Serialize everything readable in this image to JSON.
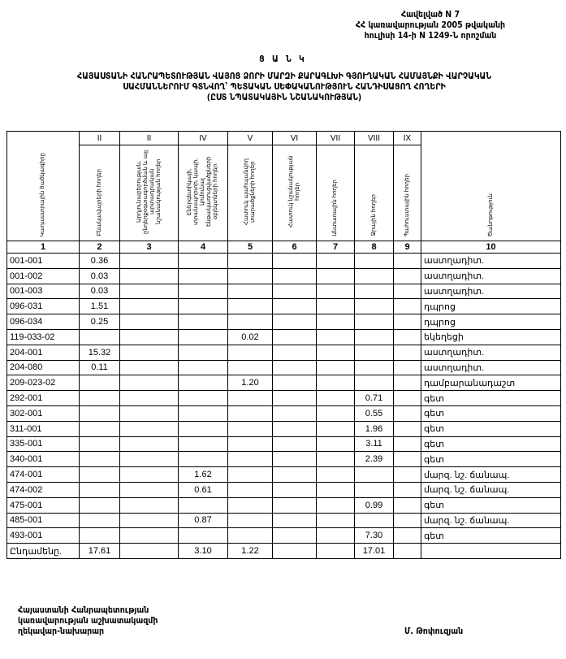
{
  "header": {
    "line1": "Հավելված N 7",
    "line2": "ՀՀ կառավարության 2005 թվականի",
    "line3": "հուլիսի 14-ի N 1249-Ն որոշման"
  },
  "list_label": "Ց Ա Ն Կ",
  "title": "ՀԱՅԱՍՏԱՆԻ ՀԱՆՐԱՊԵՏՈՒԹՅԱՆ ՎԱՅՈՑ ՁՈՐԻ ՄԱՐԶԻ ՔԱՐԱԳԼԽԻ ԳՅՈՒՂԱԿԱՆ ՀԱՄԱՅՆՔԻ ՎԱՐՉԱԿԱՆ ՍԱՀՄԱՆՆԵՐՈՒՄ ԳՏՆՎՈՂ՝ ՊԵՏԱԿԱՆ ՍԵՓԱԿԱՆՈՒԹՅՈՒՆ ՀԱՆԴԻՍԱՑՈՂ ՀՈՂԵՐԻ",
  "subtitle": "(ԸՍՏ ՆՊԱՏԱԿԱՅԻՆ ՆՇԱՆԱԿՈՒԹՅԱՆ)",
  "table": {
    "roman": [
      "II",
      "II",
      "IV",
      "V",
      "VI",
      "VII",
      "VIII",
      "IX"
    ],
    "headers": [
      "Կադաստրային ծածկագիրը",
      "Բնակավայրերի հողեր",
      "Արդյունաբերության, ընդերքօգտագործման և այլ արտադրական նշանակության հողեր",
      "Էներգետիկայի, տրանսպորտի, կապի, կոմունալ ենթակառուցվածքների օբյեկտների հողեր",
      "Հատուկ պահպանվող տարածքների հողեր",
      "Հատուկ նշանակության հողեր",
      "Անտառային հողեր",
      "Ջրային հողեր",
      "Պահուստային հողեր",
      "Ծանոթություն"
    ],
    "numbers": [
      "1",
      "2",
      "3",
      "4",
      "5",
      "6",
      "7",
      "8",
      "9",
      "10"
    ],
    "rows": [
      [
        "001-001",
        "0.36",
        "",
        "",
        "",
        "",
        "",
        "",
        "",
        "աստղադիտ."
      ],
      [
        "001-002",
        "0.03",
        "",
        "",
        "",
        "",
        "",
        "",
        "",
        "աստղադիտ."
      ],
      [
        "001-003",
        "0.03",
        "",
        "",
        "",
        "",
        "",
        "",
        "",
        "աստղադիտ."
      ],
      [
        "096-031",
        "1.51",
        "",
        "",
        "",
        "",
        "",
        "",
        "",
        "դպրոց"
      ],
      [
        "096-034",
        "0.25",
        "",
        "",
        "",
        "",
        "",
        "",
        "",
        "դպրոց"
      ],
      [
        "119-033-02",
        "",
        "",
        "",
        "0.02",
        "",
        "",
        "",
        "",
        "եկեղեցի"
      ],
      [
        "204-001",
        "15.32",
        "",
        "",
        "",
        "",
        "",
        "",
        "",
        "աստղադիտ."
      ],
      [
        "204-080",
        "0.11",
        "",
        "",
        "",
        "",
        "",
        "",
        "",
        "աստղադիտ."
      ],
      [
        "209-023-02",
        "",
        "",
        "",
        "1.20",
        "",
        "",
        "",
        "",
        "դամբարանադաշտ"
      ],
      [
        "292-001",
        "",
        "",
        "",
        "",
        "",
        "",
        "0.71",
        "",
        "գետ"
      ],
      [
        "302-001",
        "",
        "",
        "",
        "",
        "",
        "",
        "0.55",
        "",
        "գետ"
      ],
      [
        "311-001",
        "",
        "",
        "",
        "",
        "",
        "",
        "1.96",
        "",
        "գետ"
      ],
      [
        "335-001",
        "",
        "",
        "",
        "",
        "",
        "",
        "3.11",
        "",
        "գետ"
      ],
      [
        "340-001",
        "",
        "",
        "",
        "",
        "",
        "",
        "2.39",
        "",
        "գետ"
      ],
      [
        "474-001",
        "",
        "",
        "1.62",
        "",
        "",
        "",
        "",
        "",
        "մարզ. նշ. ճանապ."
      ],
      [
        "474-002",
        "",
        "",
        "0.61",
        "",
        "",
        "",
        "",
        "",
        "մարզ. նշ. ճանապ."
      ],
      [
        "475-001",
        "",
        "",
        "",
        "",
        "",
        "",
        "0.99",
        "",
        "գետ"
      ],
      [
        "485-001",
        "",
        "",
        "0.87",
        "",
        "",
        "",
        "",
        "",
        "մարզ. նշ. ճանապ."
      ],
      [
        "493-001",
        "",
        "",
        "",
        "",
        "",
        "",
        "7.30",
        "",
        "գետ"
      ]
    ],
    "total": [
      "Ընդամենը.",
      "17.61",
      "",
      "3.10",
      "1.22",
      "",
      "",
      "17.01",
      "",
      ""
    ]
  },
  "footer": {
    "line1": "Հայաստանի Հանրապետության",
    "line2": "կառավարության աշխատակազմի",
    "line3": "ղեկավար-նախարար",
    "signatory": "Մ. Թոփուզյան"
  }
}
